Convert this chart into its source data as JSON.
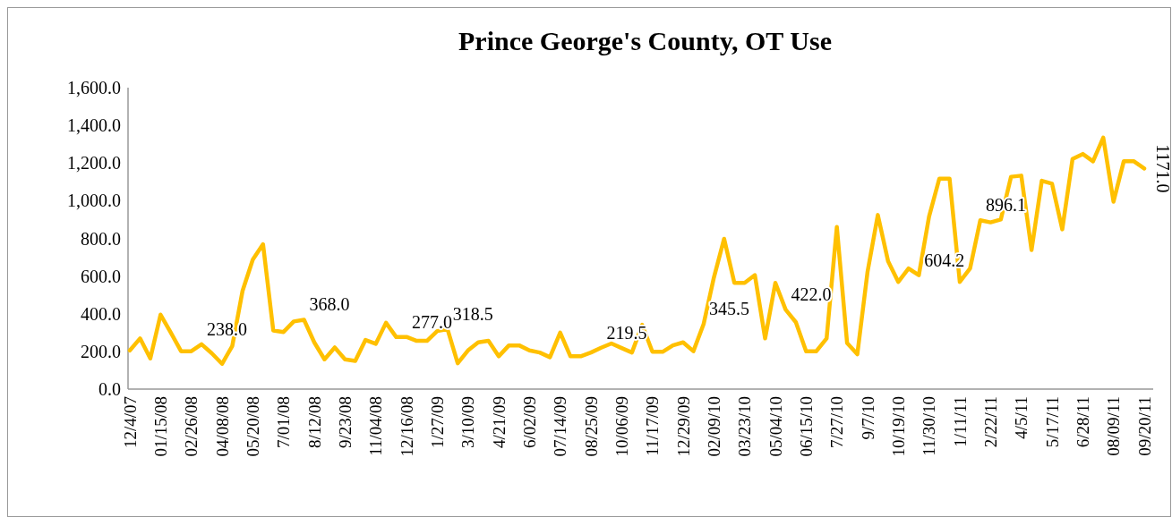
{
  "chart_data": {
    "type": "line",
    "title": "Prince George's County, OT Use",
    "categories": [
      "12/4/07",
      null,
      null,
      "01/15/08",
      null,
      null,
      "02/26/08",
      null,
      null,
      "04/08/08",
      null,
      null,
      "05/20/08",
      null,
      null,
      "7/01/08",
      null,
      null,
      "8/12/08",
      null,
      null,
      "9/23/08",
      null,
      null,
      "11/04/08",
      null,
      null,
      "12/16/08",
      null,
      null,
      "1/27/09",
      null,
      null,
      "3/10/09",
      null,
      null,
      "4/21/09",
      null,
      null,
      "6/02/09",
      null,
      null,
      "07/14/09",
      null,
      null,
      "08/25/09",
      null,
      null,
      "10/06/09",
      null,
      null,
      "11/17/09",
      null,
      null,
      "12/29/09",
      null,
      null,
      "02/09/10",
      null,
      null,
      "03/23/10",
      null,
      null,
      "05/04/10",
      null,
      null,
      "06/15/10",
      null,
      null,
      "7/27/10",
      null,
      null,
      "9/7/10",
      null,
      null,
      "10/19/10",
      null,
      null,
      "11/30/10",
      null,
      null,
      "1/11/11",
      null,
      null,
      "2/22/11",
      null,
      null,
      "4/5/11",
      null,
      null,
      "5/17/11",
      null,
      null,
      "6/28/11",
      null,
      null,
      "08/09/11",
      null,
      null,
      "09/20/11"
    ],
    "series": [
      {
        "color": "#ffc000",
        "values": [
          205,
          269,
          163,
          395,
          300,
          201,
          201,
          238,
          190,
          134,
          229,
          521,
          687,
          769,
          311,
          303,
          359,
          368,
          248,
          158,
          221,
          158,
          150,
          261,
          240,
          352,
          276,
          277,
          256,
          256,
          308,
          318.5,
          137,
          205,
          248,
          256,
          174,
          232,
          232,
          205,
          194,
          169,
          300,
          174,
          174,
          194,
          219.5,
          242,
          218,
          194,
          341,
          198,
          198,
          232,
          248,
          201,
          345.5,
          592,
          798,
          564,
          564,
          605,
          269,
          564,
          422,
          355,
          201,
          201,
          269,
          861,
          245,
          185,
          624,
          924,
          679,
          569,
          640,
          604.2,
          916,
          1117,
          1117,
          569,
          640,
          896.1,
          885,
          900,
          1127,
          1133,
          738,
          1106,
          1090,
          848,
          1221,
          1248,
          1209,
          1335,
          995,
          1209,
          1209,
          1171
        ],
        "value_labels": [
          null,
          null,
          null,
          null,
          null,
          null,
          null,
          "238.0",
          null,
          null,
          null,
          null,
          null,
          null,
          null,
          null,
          null,
          "368.0",
          null,
          null,
          null,
          null,
          null,
          null,
          null,
          null,
          null,
          "277.0",
          null,
          null,
          null,
          "318.5",
          null,
          null,
          null,
          null,
          null,
          null,
          null,
          null,
          null,
          null,
          null,
          null,
          null,
          null,
          "219.5",
          null,
          null,
          null,
          null,
          null,
          null,
          null,
          null,
          null,
          "345.5",
          null,
          null,
          null,
          null,
          null,
          null,
          null,
          "422.0",
          null,
          null,
          null,
          null,
          null,
          null,
          null,
          null,
          null,
          null,
          null,
          null,
          "604.2",
          null,
          null,
          null,
          null,
          null,
          "896.1",
          null,
          null,
          null,
          null,
          null,
          null,
          null,
          null,
          null,
          null,
          null,
          null,
          null,
          null,
          null,
          "1171.0"
        ]
      }
    ],
    "ylim": [
      0,
      1600
    ],
    "yticks": [
      {
        "value": 0,
        "label": "0.0"
      },
      {
        "value": 200,
        "label": "200.0"
      },
      {
        "value": 400,
        "label": "400.0"
      },
      {
        "value": 600,
        "label": "600.0"
      },
      {
        "value": 800,
        "label": "800.0"
      },
      {
        "value": 1000,
        "label": "1,000.0"
      },
      {
        "value": 1200,
        "label": "1,200.0"
      },
      {
        "value": 1400,
        "label": "1,400.0"
      },
      {
        "value": 1600,
        "label": "1,600.0"
      }
    ],
    "grid": false,
    "marker": "none",
    "line_style": "solid"
  }
}
